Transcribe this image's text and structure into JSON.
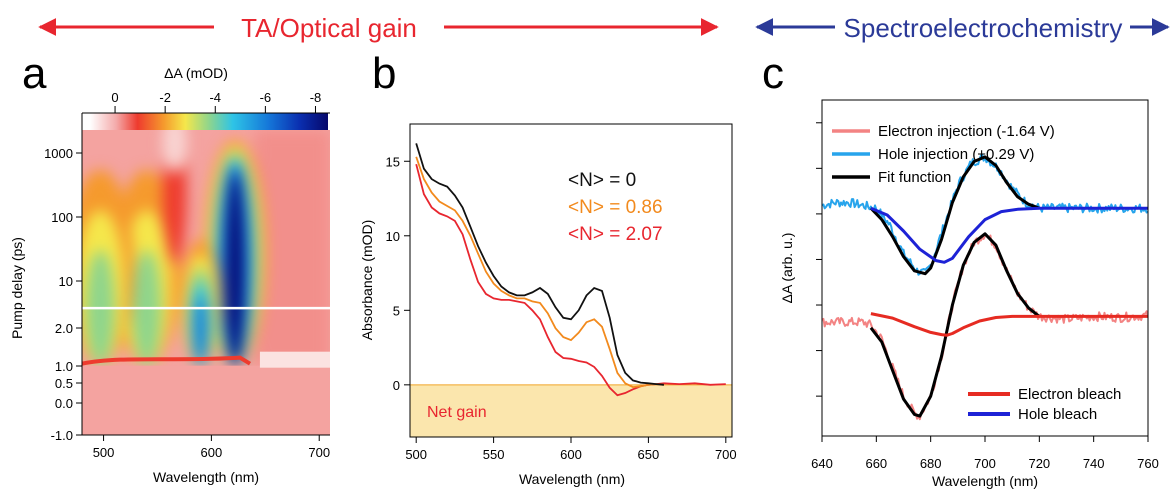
{
  "header": {
    "left_label": "TA/Optical gain",
    "right_label": "Spectroelectrochemistry",
    "left_color": "#e8262f",
    "right_color": "#2b3a98"
  },
  "chart_data": [
    {
      "panel": "a",
      "type": "heatmap",
      "xlabel": "Wavelength (nm)",
      "ylabel": "Pump delay (ps)",
      "colorbar_label": "ΔA (mOD)",
      "colorbar_ticks": [
        "0",
        "-2",
        "-4",
        "-6",
        "-8"
      ],
      "colorbar_range": [
        1,
        -8.5
      ],
      "xlim": [
        480,
        710
      ],
      "x_ticks": [
        500,
        600,
        700
      ],
      "y_ticks": [
        "1000",
        "100",
        "10",
        "2.0",
        "1.0",
        "0.5",
        "0.0",
        "-1.0"
      ],
      "y_scale": "linear below 0.1 ps, log above",
      "bands": [
        {
          "center_nm": 622,
          "max_mOD": -8.2
        },
        {
          "center_nm": 590,
          "max_mOD": -6.0
        },
        {
          "center_nm": 540,
          "max_mOD": -2.5
        },
        {
          "center_nm": 497,
          "max_mOD": -2.5
        }
      ],
      "reference_line_ps": 2.0,
      "reference_line_color": "#ffffff"
    },
    {
      "panel": "b",
      "type": "line",
      "xlabel": "Wavelength (nm)",
      "ylabel": "Absorbance (mOD)",
      "xlim": [
        496,
        704
      ],
      "ylim": [
        -3.5,
        17.5
      ],
      "x_ticks": [
        500,
        550,
        600,
        650,
        700
      ],
      "y_ticks": [
        0,
        5,
        10,
        15
      ],
      "region_label": "Net gain",
      "region_range": [
        -3.5,
        0
      ],
      "region_color": "#fbe6ad",
      "series": [
        {
          "name": "<N> = 0",
          "color": "#111111",
          "x": [
            500,
            505,
            510,
            515,
            520,
            525,
            530,
            535,
            540,
            545,
            550,
            555,
            560,
            565,
            570,
            575,
            580,
            585,
            590,
            595,
            600,
            605,
            610,
            615,
            620,
            625,
            630,
            635,
            640,
            645,
            650,
            655,
            660
          ],
          "y": [
            16.2,
            14.5,
            13.8,
            13.5,
            13.3,
            12.7,
            11.9,
            10.6,
            9.3,
            8.2,
            7.3,
            6.6,
            6.2,
            6.0,
            6.0,
            6.2,
            6.5,
            6.1,
            5.2,
            4.5,
            4.4,
            5.0,
            6.0,
            6.5,
            6.3,
            4.5,
            2.0,
            0.8,
            0.3,
            0.15,
            0.1,
            0.05,
            0.0
          ]
        },
        {
          "name": "<N> = 0.86",
          "color": "#f28a1d",
          "x": [
            500,
            505,
            510,
            515,
            520,
            525,
            530,
            535,
            540,
            545,
            550,
            555,
            560,
            565,
            570,
            575,
            580,
            585,
            590,
            595,
            600,
            605,
            610,
            615,
            620,
            625,
            630,
            635,
            640,
            645,
            650,
            655,
            660
          ],
          "y": [
            15.3,
            13.8,
            12.9,
            12.3,
            12.0,
            11.7,
            11.0,
            10.0,
            8.8,
            7.6,
            6.8,
            6.3,
            6.0,
            5.8,
            5.8,
            5.6,
            5.5,
            4.8,
            3.8,
            3.2,
            3.0,
            3.5,
            4.2,
            4.4,
            3.9,
            2.4,
            0.8,
            0.1,
            -0.15,
            -0.1,
            0.0,
            0.05,
            0.0
          ]
        },
        {
          "name": "<N> = 2.07",
          "color": "#e8262f",
          "x": [
            500,
            505,
            510,
            515,
            520,
            525,
            530,
            535,
            540,
            545,
            550,
            555,
            560,
            565,
            570,
            575,
            580,
            585,
            590,
            595,
            600,
            605,
            610,
            615,
            620,
            625,
            630,
            635,
            640,
            645,
            650,
            655,
            660,
            670,
            680,
            690,
            700
          ],
          "y": [
            14.8,
            12.8,
            11.9,
            11.5,
            11.3,
            11.0,
            10.1,
            8.4,
            6.9,
            6.1,
            5.8,
            5.7,
            5.7,
            5.6,
            5.5,
            5.0,
            4.4,
            3.2,
            2.2,
            1.8,
            1.75,
            1.6,
            1.5,
            1.2,
            0.6,
            -0.2,
            -0.7,
            -0.55,
            -0.3,
            -0.1,
            0.0,
            0.05,
            0.1,
            0.05,
            0.1,
            0.0,
            0.05
          ]
        }
      ]
    },
    {
      "panel": "c",
      "type": "line",
      "xlabel": "Wavelength (nm)",
      "ylabel": "ΔA (arb. u.)",
      "xlim": [
        640,
        760
      ],
      "ylim": [
        -4.0,
        1.9
      ],
      "x_ticks": [
        640,
        660,
        680,
        700,
        720,
        740,
        760
      ],
      "legend_top": [
        {
          "name": "Electron injection (-1.64 V)",
          "color": "#f38383"
        },
        {
          "name": "Hole injection (+0.29 V)",
          "color": "#27a4ec"
        },
        {
          "name": "Fit function",
          "color": "#000000"
        }
      ],
      "legend_bottom": [
        {
          "name": "Electron bleach",
          "color": "#e62b22"
        },
        {
          "name": "Hole bleach",
          "color": "#1d22d6"
        }
      ],
      "series": [
        {
          "name": "Hole injection (+0.29 V)",
          "color": "#27a4ec",
          "width": 2,
          "noise": 0.08,
          "x": [
            640,
            645,
            650,
            655,
            660,
            665,
            670,
            675,
            678,
            680,
            685,
            690,
            695,
            700,
            705,
            710,
            715,
            720,
            730,
            740,
            750,
            760
          ],
          "y": [
            0.05,
            0.1,
            0.1,
            0.05,
            0.0,
            -0.3,
            -0.8,
            -1.1,
            -1.15,
            -1.0,
            -0.3,
            0.4,
            0.8,
            0.9,
            0.7,
            0.35,
            0.1,
            0.0,
            0.0,
            0.0,
            0.0,
            0.0
          ]
        },
        {
          "name": "Fit function",
          "color": "#000000",
          "width": 3,
          "noise": 0,
          "x": [
            658,
            662,
            666,
            670,
            674,
            678,
            680,
            684,
            688,
            692,
            696,
            700,
            704,
            708,
            712,
            716,
            720
          ],
          "y": [
            0.0,
            -0.2,
            -0.5,
            -0.85,
            -1.1,
            -1.15,
            -1.05,
            -0.55,
            0.1,
            0.55,
            0.82,
            0.9,
            0.75,
            0.45,
            0.2,
            0.07,
            0.0
          ]
        },
        {
          "name": "Hole bleach",
          "color": "#1d22d6",
          "width": 3,
          "noise": 0,
          "x": [
            658,
            664,
            670,
            676,
            682,
            685,
            688,
            694,
            700,
            706,
            712,
            720,
            730,
            740,
            750,
            760
          ],
          "y": [
            0.0,
            -0.12,
            -0.4,
            -0.72,
            -0.92,
            -0.95,
            -0.88,
            -0.5,
            -0.2,
            -0.06,
            -0.02,
            0.0,
            0.0,
            0.0,
            0.0,
            0.0
          ]
        },
        {
          "name": "Electron injection (-1.64 V)",
          "color": "#f38383",
          "width": 2,
          "noise": 0.08,
          "x": [
            640,
            645,
            650,
            655,
            658,
            662,
            666,
            670,
            674,
            676,
            680,
            684,
            688,
            692,
            696,
            700,
            704,
            708,
            712,
            716,
            720,
            730,
            740,
            750,
            760
          ],
          "y": [
            -2.0,
            -2.0,
            -2.0,
            -2.0,
            -2.05,
            -2.3,
            -2.8,
            -3.3,
            -3.6,
            -3.65,
            -3.3,
            -2.6,
            -1.7,
            -1.0,
            -0.6,
            -0.45,
            -0.65,
            -1.1,
            -1.5,
            -1.75,
            -1.9,
            -1.95,
            -1.9,
            -1.92,
            -1.88
          ]
        },
        {
          "name": "Fit function",
          "color": "#000000",
          "width": 3,
          "noise": 0,
          "x": [
            658,
            662,
            666,
            670,
            674,
            676,
            680,
            684,
            688,
            692,
            696,
            700,
            704,
            708,
            712,
            716,
            720
          ],
          "y": [
            -2.1,
            -2.35,
            -2.85,
            -3.35,
            -3.62,
            -3.65,
            -3.3,
            -2.6,
            -1.7,
            -1.0,
            -0.6,
            -0.45,
            -0.65,
            -1.1,
            -1.5,
            -1.75,
            -1.9
          ]
        },
        {
          "name": "Electron bleach",
          "color": "#e62b22",
          "width": 3,
          "noise": 0,
          "x": [
            658,
            666,
            674,
            680,
            684,
            686,
            688,
            692,
            698,
            704,
            710,
            720,
            730,
            740,
            750,
            760
          ],
          "y": [
            -1.85,
            -1.93,
            -2.08,
            -2.18,
            -2.22,
            -2.23,
            -2.2,
            -2.1,
            -1.98,
            -1.92,
            -1.9,
            -1.9,
            -1.9,
            -1.9,
            -1.9,
            -1.9
          ]
        }
      ]
    }
  ]
}
